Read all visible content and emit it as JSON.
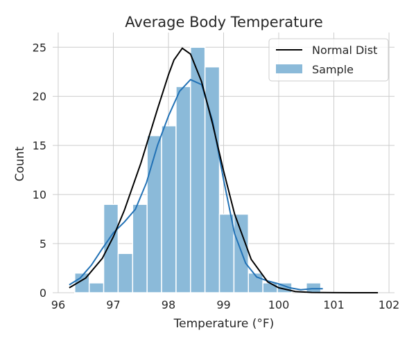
{
  "chart_data": {
    "type": "bar",
    "title": "Average Body Temperature",
    "xlabel": "Temperature (°F)",
    "ylabel": "Count",
    "xlim": [
      95.9,
      102.1
    ],
    "ylim": [
      0,
      26.5
    ],
    "xticks": [
      96,
      97,
      98,
      99,
      100,
      101,
      102
    ],
    "yticks": [
      0,
      5,
      10,
      15,
      20,
      25
    ],
    "grid": true,
    "legend_position": "top-right",
    "bins": [
      {
        "x0": 96.3,
        "x1": 96.5625,
        "count": 2
      },
      {
        "x0": 96.5625,
        "x1": 96.825,
        "count": 1
      },
      {
        "x0": 96.825,
        "x1": 97.0875,
        "count": 9
      },
      {
        "x0": 97.0875,
        "x1": 97.35,
        "count": 4
      },
      {
        "x0": 97.35,
        "x1": 97.6125,
        "count": 9
      },
      {
        "x0": 97.6125,
        "x1": 97.875,
        "count": 16
      },
      {
        "x0": 97.875,
        "x1": 98.1375,
        "count": 17
      },
      {
        "x0": 98.1375,
        "x1": 98.4,
        "count": 21
      },
      {
        "x0": 98.4,
        "x1": 98.6625,
        "count": 25
      },
      {
        "x0": 98.6625,
        "x1": 98.925,
        "count": 23
      },
      {
        "x0": 98.925,
        "x1": 99.1875,
        "count": 8
      },
      {
        "x0": 99.1875,
        "x1": 99.45,
        "count": 8
      },
      {
        "x0": 99.45,
        "x1": 99.7125,
        "count": 2
      },
      {
        "x0": 99.7125,
        "x1": 99.975,
        "count": 1
      },
      {
        "x0": 99.975,
        "x1": 100.2375,
        "count": 1
      },
      {
        "x0": 100.2375,
        "x1": 100.5,
        "count": 0
      },
      {
        "x0": 100.5,
        "x1": 100.7625,
        "count": 1
      }
    ],
    "series": [
      {
        "name": "Normal Dist",
        "color": "#000000",
        "x": [
          96.2,
          96.5,
          96.8,
          97.0,
          97.2,
          97.5,
          97.8,
          98.0,
          98.1,
          98.25,
          98.4,
          98.6,
          98.8,
          99.0,
          99.2,
          99.5,
          99.8,
          100.0,
          100.3,
          100.6,
          101.0,
          101.4,
          101.8
        ],
        "y": [
          0.5,
          1.5,
          3.5,
          5.7,
          8.4,
          13.2,
          18.7,
          22.2,
          23.7,
          24.9,
          24.3,
          21.5,
          17.2,
          12.4,
          8.0,
          3.4,
          1.1,
          0.5,
          0.13,
          0.03,
          0.01,
          0.0,
          0.0
        ]
      },
      {
        "name": "Sample",
        "kind": "histogram",
        "color": "#8bbad9",
        "kde_color": "#2171b5"
      }
    ],
    "kde": {
      "x": [
        96.2,
        96.4,
        96.6,
        96.8,
        97.0,
        97.2,
        97.4,
        97.6,
        97.8,
        98.0,
        98.2,
        98.4,
        98.6,
        98.8,
        99.0,
        99.2,
        99.4,
        99.6,
        99.8,
        100.0,
        100.2,
        100.4,
        100.6,
        100.8
      ],
      "y": [
        0.8,
        1.5,
        2.8,
        4.5,
        6.1,
        7.2,
        8.5,
        11.2,
        15.0,
        18.0,
        20.5,
        21.7,
        21.2,
        17.5,
        11.5,
        6.0,
        3.0,
        1.6,
        1.2,
        0.9,
        0.5,
        0.3,
        0.4,
        0.4
      ]
    }
  }
}
